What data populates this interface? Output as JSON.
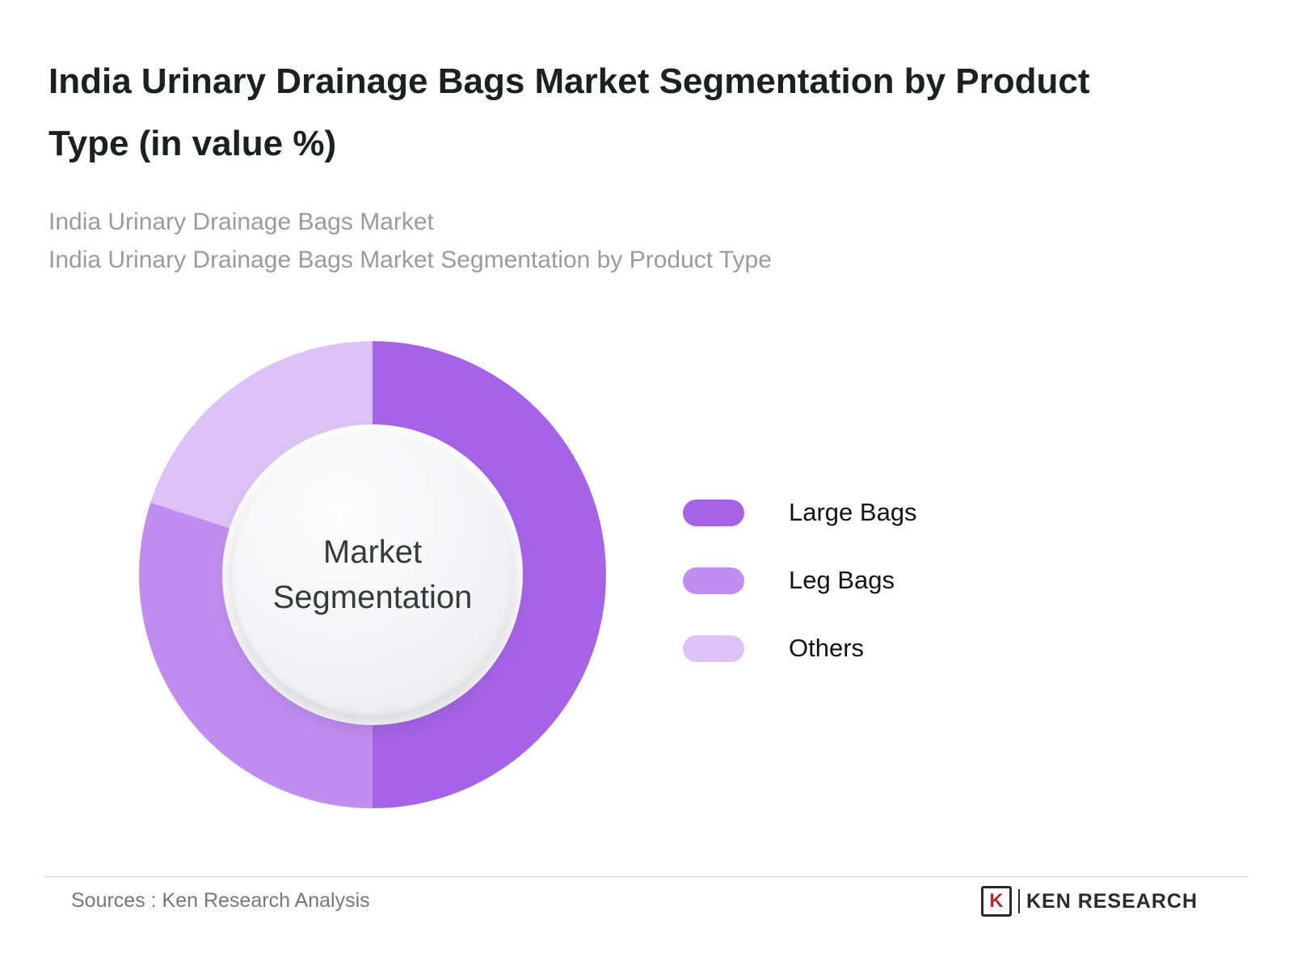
{
  "header": {
    "title": "India Urinary Drainage Bags Market Segmentation by Product Type (in value %)",
    "subtitle_line1": "India Urinary Drainage Bags Market",
    "subtitle_line2": "India Urinary Drainage Bags Market Segmentation by Product Type"
  },
  "chart_data": {
    "type": "pie",
    "donut": true,
    "title": "India Urinary Drainage Bags Market Segmentation by Product Type (in value %)",
    "center_label": "Market Segmentation",
    "legend_position": "right",
    "start_angle_deg": 0,
    "units": "value %",
    "segments": [
      {
        "label": "Large Bags",
        "value": 50,
        "color": "#a763e8"
      },
      {
        "label": "Leg Bags",
        "value": 30,
        "color": "#c18df1"
      },
      {
        "label": "Others",
        "value": 20,
        "color": "#ddc2f8"
      }
    ]
  },
  "footer": {
    "source": "Sources : Ken Research Analysis",
    "logo_letter": "K",
    "logo_text": "KEN RESEARCH"
  }
}
